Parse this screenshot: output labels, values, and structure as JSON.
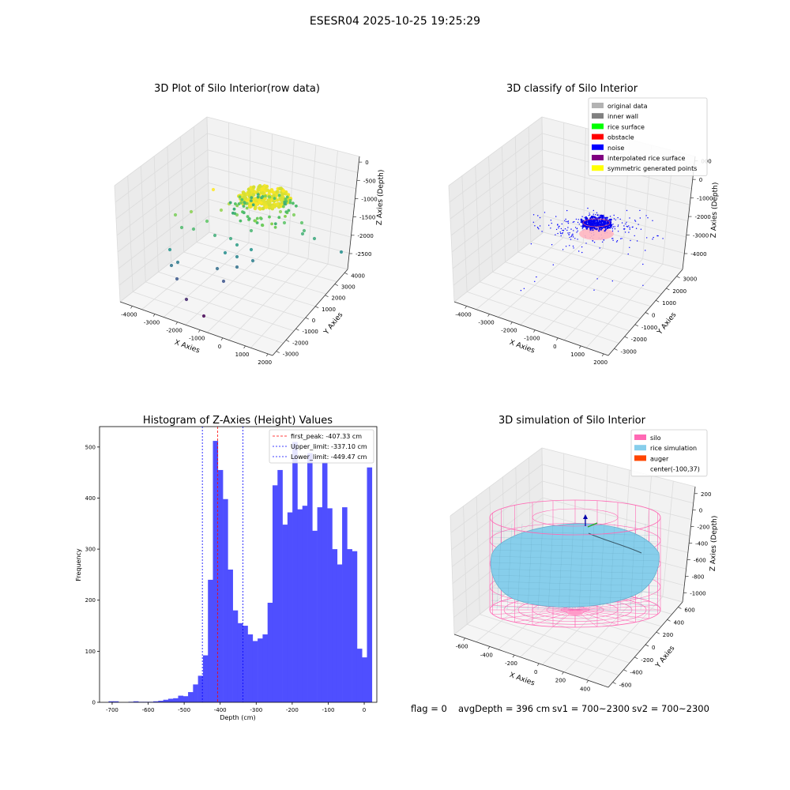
{
  "suptitle": "ESESR04 2025-10-25 19:25:29",
  "footer": {
    "flag": "flag = 0",
    "avg": "avgDepth = 396 cm",
    "sv1": "sv1 = 700~2300",
    "sv2": "sv2 = 700~2300"
  },
  "colors": {
    "hist_bar": "#4f4fff",
    "peak": "#ff0000",
    "limit": "#0000ff",
    "silo": "#ff69b4",
    "rice": "#87ceeb",
    "auger": "#ff4500",
    "noise": "#0000ff",
    "pane": "#f2f2f2"
  },
  "chart_data": [
    {
      "type": "scatter",
      "title": "3D Plot of Silo Interior(row data)",
      "xlabel": "X Axies",
      "ylabel": "Y Axies",
      "zlabel": "Z Axies (Depth)",
      "x_ticks": [
        "-4000",
        "-3000",
        "-2000",
        "-1000",
        "0",
        "1000",
        "2000"
      ],
      "y_ticks": [
        "-3000",
        "-2000",
        "-1000",
        "0",
        "1000",
        "2000",
        "3000",
        "4000"
      ],
      "z_ticks": [
        "0",
        "-500",
        "-1000",
        "-1500",
        "-2000",
        "-2500"
      ],
      "colormap": "viridis",
      "zlim": [
        -2800,
        0
      ]
    },
    {
      "type": "scatter",
      "title": "3D classify of Silo Interior",
      "xlabel": "X Axies",
      "ylabel": "Y Axies",
      "zlabel": "Z Axies (Depth)",
      "x_ticks": [
        "-4000",
        "-3000",
        "-2000",
        "-1000",
        "0",
        "1000",
        "2000"
      ],
      "y_ticks": [
        "-3000",
        "-2000",
        "-1000",
        "0",
        "1000",
        "2000",
        "3000"
      ],
      "z_ticks": [
        "000",
        "0",
        "-1000",
        "-2000",
        "-3000",
        "-4000"
      ],
      "legend_position": "top-right",
      "legend": [
        {
          "label": "original data",
          "color": "#b3b3b3"
        },
        {
          "label": "inner wall",
          "color": "#808080"
        },
        {
          "label": "rice surface",
          "color": "#00ff00"
        },
        {
          "label": "obstacle",
          "color": "#ff0000"
        },
        {
          "label": "noise",
          "color": "#0000ff"
        },
        {
          "label": "interpolated rice surface",
          "color": "#800080"
        },
        {
          "label": "symmetric generated points",
          "color": "#ffff00"
        }
      ]
    },
    {
      "type": "bar",
      "title": "Histogram of Z-Axies (Height) Values",
      "xlabel": "Depth (cm)",
      "ylabel": "Frequency",
      "xlim": [
        -735,
        35
      ],
      "ylim": [
        0,
        540
      ],
      "x_ticks": [
        -700,
        -600,
        -500,
        -400,
        -300,
        -200,
        -100,
        0
      ],
      "y_ticks": [
        0,
        100,
        200,
        300,
        400,
        500
      ],
      "bin_start": -710,
      "bin_width": 13.8,
      "values": [
        2,
        2,
        0,
        0,
        1,
        2,
        1,
        1,
        1,
        2,
        3,
        5,
        7,
        8,
        13,
        12,
        20,
        35,
        52,
        92,
        240,
        512,
        455,
        398,
        260,
        180,
        155,
        150,
        133,
        120,
        125,
        133,
        195,
        425,
        455,
        348,
        372,
        510,
        378,
        385,
        488,
        336,
        382,
        470,
        380,
        300,
        270,
        382,
        300,
        296,
        105,
        88,
        460
      ],
      "legend_position": "top-right",
      "vlines": [
        {
          "label": "first_peak: -407.33 cm",
          "x": -407.33,
          "kind": "peak"
        },
        {
          "label": "Upper_limit: -337.10 cm",
          "x": -337.1,
          "kind": "limit"
        },
        {
          "label": "Lower_limit: -449.47 cm",
          "x": -449.47,
          "kind": "limit"
        }
      ]
    },
    {
      "type": "area",
      "title": "3D simulation of Silo Interior",
      "xlabel": "X Axies",
      "ylabel": "Y Axies",
      "zlabel": "Z Axies (Depth)",
      "x_ticks": [
        "-600",
        "-400",
        "-200",
        "0",
        "200",
        "400"
      ],
      "y_ticks": [
        "-600",
        "-400",
        "-200",
        "0",
        "200",
        "400",
        "600"
      ],
      "z_ticks": [
        "200",
        "0",
        "-200",
        "-400",
        "-600",
        "-800",
        "-1000"
      ],
      "legend_position": "top-right",
      "legend": [
        {
          "label": "silo",
          "color": "#ff69b4"
        },
        {
          "label": "rice simulation",
          "color": "#87ceeb"
        },
        {
          "label": "auger",
          "color": "#ff4500"
        },
        {
          "label": "center(-100,37)",
          "color": ""
        }
      ]
    }
  ]
}
